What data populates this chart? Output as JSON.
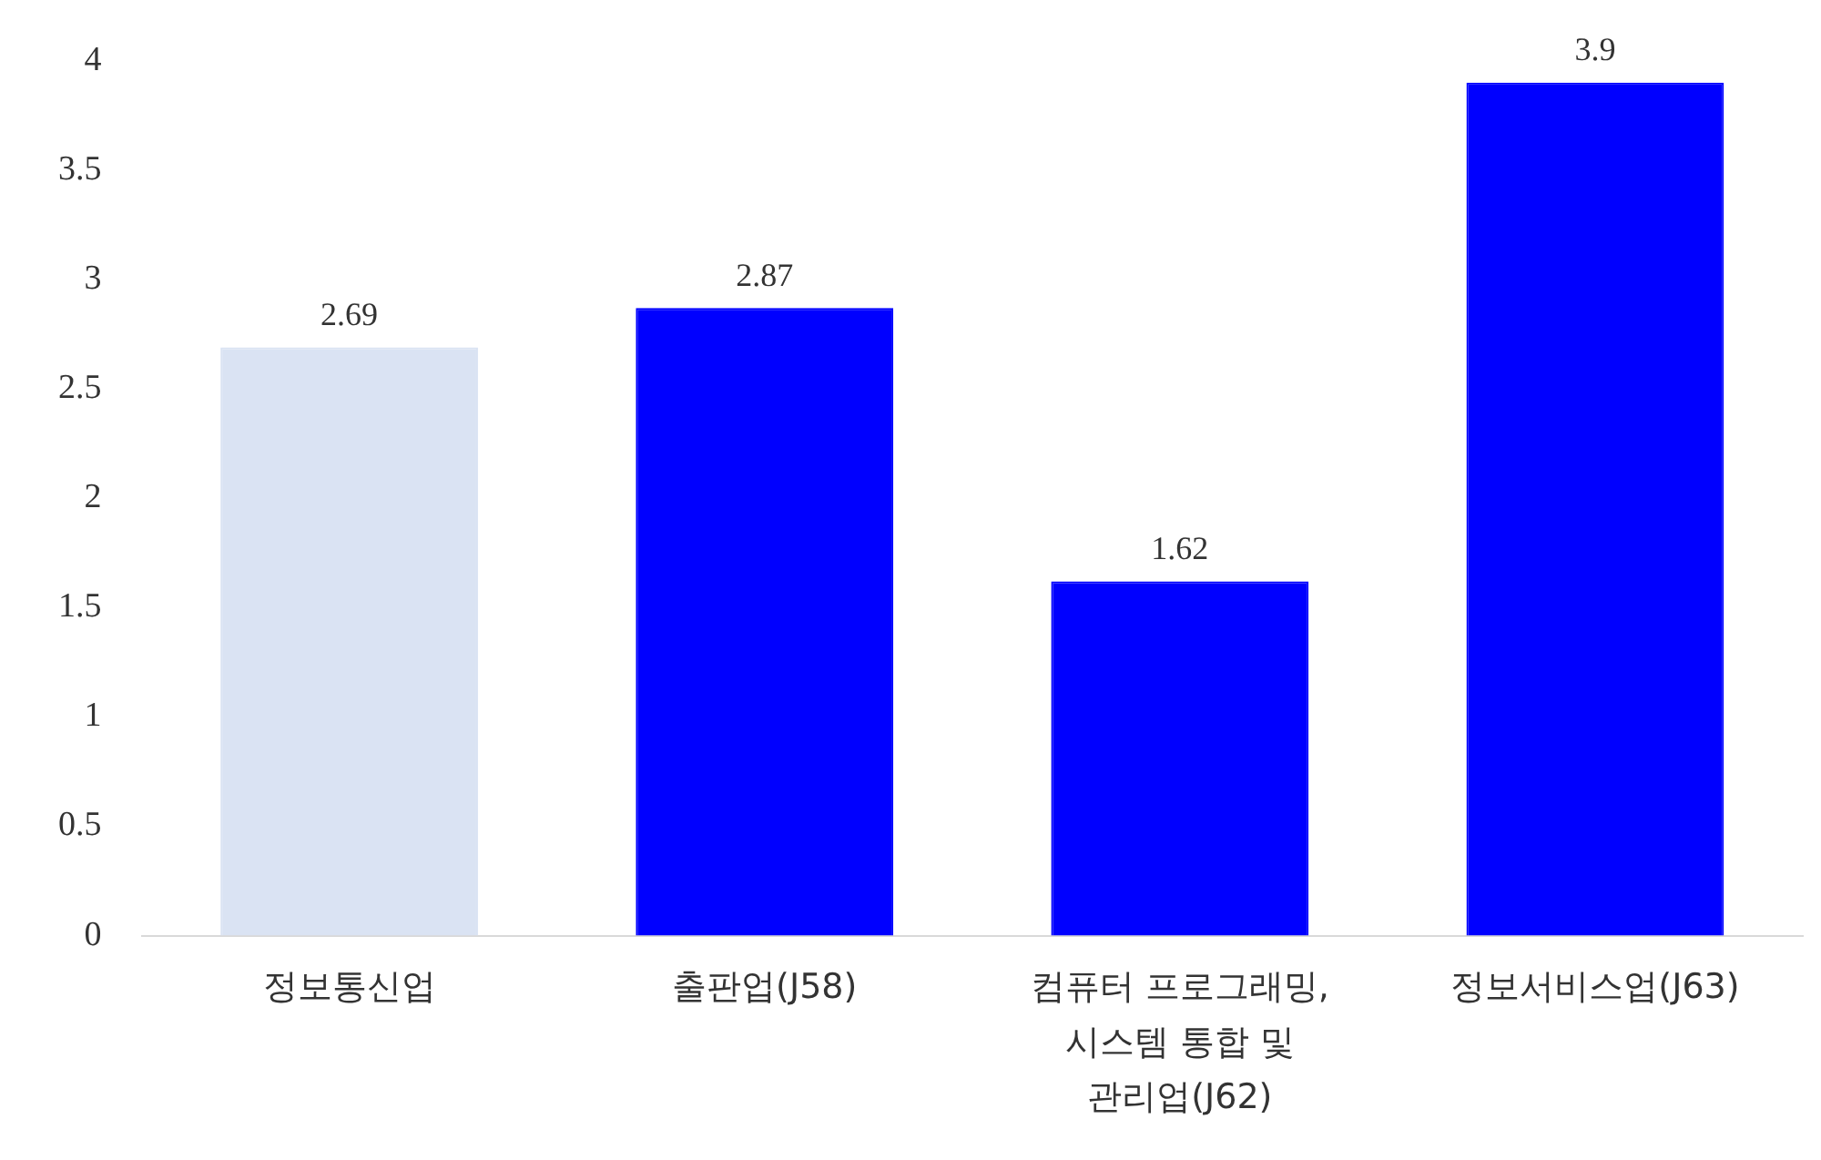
{
  "chart_data": {
    "type": "bar",
    "categories": [
      "정보통신업",
      "출판업(J58)",
      "컴퓨터 프로그래밍, 시스템 통합 및 관리업(J62)",
      "정보서비스업(J63)"
    ],
    "values": [
      2.69,
      2.87,
      1.62,
      3.9
    ],
    "colors": [
      "#dae3f3",
      "#0000ff",
      "#0000ff",
      "#0000ff"
    ],
    "ylim": [
      0,
      4
    ],
    "yticks": [
      0,
      0.5,
      1,
      1.5,
      2,
      2.5,
      3,
      3.5,
      4
    ],
    "grid": false,
    "data_labels": true,
    "legend": false
  }
}
